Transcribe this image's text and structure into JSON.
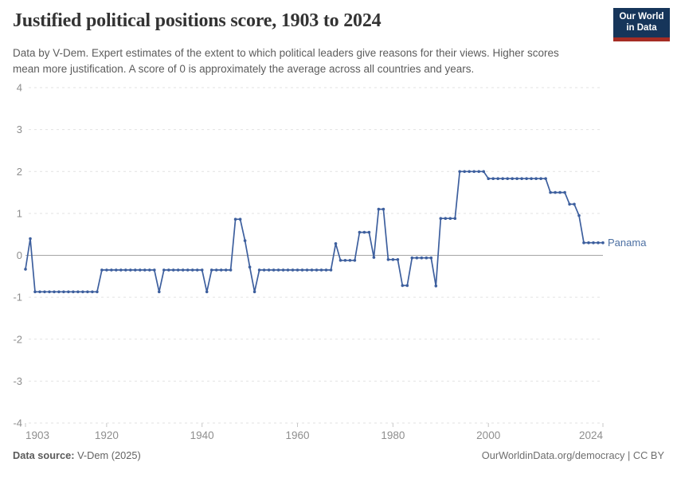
{
  "header": {
    "title": "Justified political positions score, 1903 to 2024",
    "subtitle": "Data by V-Dem. Expert estimates of the extent to which political leaders give reasons for their views. Higher scores mean more justification. A score of 0 is approximately the average across all countries and years.",
    "logo": {
      "line1": "Our World",
      "line2": "in Data"
    }
  },
  "footer": {
    "source_label": "Data source:",
    "source_value": " V-Dem (2025)",
    "credit": "OurWorldinData.org/democracy | CC BY"
  },
  "colors": {
    "line": "#3d5f9e",
    "entity_label": "#4d70a3",
    "grid": "#e2e2e2",
    "zero_line": "#a6a6a6",
    "axis_label": "#8e8e8e",
    "tick_mark": "#c8c8c8",
    "title": "#333333",
    "subtitle": "#5c5c5c",
    "footer": "#636363",
    "logo_bg": "#16355a",
    "logo_red": "#a52c24"
  },
  "chart_data": {
    "type": "line",
    "title": "Justified political positions score, 1903 to 2024",
    "xlabel": "",
    "ylabel": "",
    "xlim": [
      1903,
      2024
    ],
    "ylim": [
      -4,
      4
    ],
    "x_ticks": [
      1903,
      1920,
      1940,
      1960,
      1980,
      2000,
      2024
    ],
    "y_ticks": [
      4,
      3,
      2,
      1,
      0,
      -1,
      -2,
      -3,
      -4
    ],
    "grid": "horizontal-dashed, solid zero line",
    "legend_position": "end-of-line label",
    "entity_label": "Panama",
    "series": [
      {
        "name": "Panama",
        "color": "#3d5f9e",
        "years": [
          1903,
          1904,
          1905,
          1906,
          1907,
          1908,
          1909,
          1910,
          1911,
          1912,
          1913,
          1914,
          1915,
          1916,
          1917,
          1918,
          1919,
          1920,
          1921,
          1922,
          1923,
          1924,
          1925,
          1926,
          1927,
          1928,
          1929,
          1930,
          1931,
          1932,
          1933,
          1934,
          1935,
          1936,
          1937,
          1938,
          1939,
          1940,
          1941,
          1942,
          1943,
          1944,
          1945,
          1946,
          1947,
          1948,
          1949,
          1950,
          1951,
          1952,
          1953,
          1954,
          1955,
          1956,
          1957,
          1958,
          1959,
          1960,
          1961,
          1962,
          1963,
          1964,
          1965,
          1966,
          1967,
          1968,
          1969,
          1970,
          1971,
          1972,
          1973,
          1974,
          1975,
          1976,
          1977,
          1978,
          1979,
          1980,
          1981,
          1982,
          1983,
          1984,
          1985,
          1986,
          1987,
          1988,
          1989,
          1990,
          1991,
          1992,
          1993,
          1994,
          1995,
          1996,
          1997,
          1998,
          1999,
          2000,
          2001,
          2002,
          2003,
          2004,
          2005,
          2006,
          2007,
          2008,
          2009,
          2010,
          2011,
          2012,
          2013,
          2014,
          2015,
          2016,
          2017,
          2018,
          2019,
          2020,
          2021,
          2022,
          2023,
          2024
        ],
        "values": [
          -0.33,
          0.4,
          -0.87,
          -0.87,
          -0.87,
          -0.87,
          -0.87,
          -0.87,
          -0.87,
          -0.87,
          -0.87,
          -0.87,
          -0.87,
          -0.87,
          -0.87,
          -0.87,
          -0.35,
          -0.35,
          -0.35,
          -0.35,
          -0.35,
          -0.35,
          -0.35,
          -0.35,
          -0.35,
          -0.35,
          -0.35,
          -0.35,
          -0.87,
          -0.35,
          -0.35,
          -0.35,
          -0.35,
          -0.35,
          -0.35,
          -0.35,
          -0.35,
          -0.35,
          -0.87,
          -0.35,
          -0.35,
          -0.35,
          -0.35,
          -0.35,
          0.86,
          0.86,
          0.35,
          -0.28,
          -0.87,
          -0.35,
          -0.35,
          -0.35,
          -0.35,
          -0.35,
          -0.35,
          -0.35,
          -0.35,
          -0.35,
          -0.35,
          -0.35,
          -0.35,
          -0.35,
          -0.35,
          -0.35,
          -0.35,
          0.28,
          -0.12,
          -0.12,
          -0.12,
          -0.12,
          0.55,
          0.55,
          0.55,
          -0.05,
          1.1,
          1.1,
          -0.1,
          -0.1,
          -0.1,
          -0.72,
          -0.72,
          -0.06,
          -0.06,
          -0.06,
          -0.06,
          -0.06,
          -0.73,
          0.88,
          0.88,
          0.88,
          0.88,
          2,
          2,
          2,
          2,
          2,
          2,
          1.83,
          1.83,
          1.83,
          1.83,
          1.83,
          1.83,
          1.83,
          1.83,
          1.83,
          1.83,
          1.83,
          1.83,
          1.83,
          1.5,
          1.5,
          1.5,
          1.5,
          1.22,
          1.22,
          0.95,
          0.3,
          0.3,
          0.3,
          0.3,
          0.3
        ]
      }
    ]
  }
}
